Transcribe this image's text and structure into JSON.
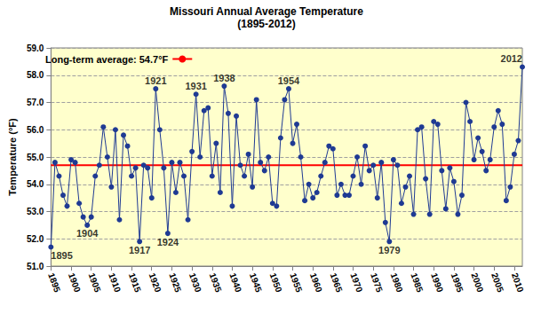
{
  "chart_data": {
    "type": "line",
    "title": "Missouri Annual Average Temperature",
    "subtitle": "(1895-2012)",
    "y_label": "Temperature (°F)",
    "x": [
      1895,
      1896,
      1897,
      1898,
      1899,
      1900,
      1901,
      1902,
      1903,
      1904,
      1905,
      1906,
      1907,
      1908,
      1909,
      1910,
      1911,
      1912,
      1913,
      1914,
      1915,
      1916,
      1917,
      1918,
      1919,
      1920,
      1921,
      1922,
      1923,
      1924,
      1925,
      1926,
      1927,
      1928,
      1929,
      1930,
      1931,
      1932,
      1933,
      1934,
      1935,
      1936,
      1937,
      1938,
      1939,
      1940,
      1941,
      1942,
      1943,
      1944,
      1945,
      1946,
      1947,
      1948,
      1949,
      1950,
      1951,
      1952,
      1953,
      1954,
      1955,
      1956,
      1957,
      1958,
      1959,
      1960,
      1961,
      1962,
      1963,
      1964,
      1965,
      1966,
      1967,
      1968,
      1969,
      1970,
      1971,
      1972,
      1973,
      1974,
      1975,
      1976,
      1977,
      1978,
      1979,
      1980,
      1981,
      1982,
      1983,
      1984,
      1985,
      1986,
      1987,
      1988,
      1989,
      1990,
      1991,
      1992,
      1993,
      1994,
      1995,
      1996,
      1997,
      1998,
      1999,
      2000,
      2001,
      2002,
      2003,
      2004,
      2005,
      2006,
      2007,
      2008,
      2009,
      2010,
      2011,
      2012
    ],
    "values": [
      51.7,
      54.8,
      54.3,
      53.6,
      53.2,
      54.9,
      54.8,
      53.3,
      52.8,
      52.5,
      52.8,
      54.3,
      54.7,
      56.1,
      55.0,
      53.9,
      56.0,
      52.7,
      55.8,
      55.4,
      54.3,
      54.6,
      51.9,
      54.7,
      54.6,
      53.5,
      57.5,
      56.0,
      54.6,
      52.2,
      54.8,
      53.7,
      54.8,
      54.3,
      52.7,
      55.2,
      57.3,
      55.0,
      56.7,
      56.8,
      54.3,
      55.5,
      53.7,
      57.6,
      56.6,
      53.2,
      56.5,
      54.7,
      54.3,
      55.1,
      53.9,
      57.1,
      54.8,
      54.5,
      55.0,
      53.3,
      53.2,
      55.7,
      57.1,
      57.5,
      55.5,
      56.2,
      55.0,
      53.4,
      54.0,
      53.5,
      53.7,
      54.3,
      54.8,
      55.4,
      55.3,
      53.6,
      54.0,
      53.6,
      53.6,
      54.3,
      55.0,
      54.0,
      55.4,
      54.5,
      54.7,
      53.5,
      54.8,
      52.6,
      51.9,
      54.9,
      54.7,
      53.3,
      53.9,
      54.3,
      52.9,
      56.0,
      56.1,
      54.2,
      52.9,
      56.3,
      56.2,
      54.5,
      53.1,
      54.6,
      54.1,
      52.9,
      53.6,
      57.0,
      56.3,
      54.9,
      55.7,
      55.2,
      54.5,
      54.9,
      56.1,
      56.7,
      56.2,
      53.4,
      53.9,
      55.1,
      55.6,
      58.3
    ],
    "color": "#1f3a93",
    "marker": "circle",
    "line_style": "solid",
    "reference_line": {
      "name": "Long-term average: 54.7°F",
      "value": 54.7,
      "color": "#ff0000"
    },
    "annotations": [
      {
        "text": "1895",
        "x": 1895
      },
      {
        "text": "1904",
        "x": 1904
      },
      {
        "text": "1917",
        "x": 1917
      },
      {
        "text": "1921",
        "x": 1921
      },
      {
        "text": "1924",
        "x": 1924
      },
      {
        "text": "1931",
        "x": 1931
      },
      {
        "text": "1938",
        "x": 1938
      },
      {
        "text": "1954",
        "x": 1954
      },
      {
        "text": "1979",
        "x": 1979
      },
      {
        "text": "2012",
        "x": 2012
      }
    ],
    "xlim": [
      1895,
      2012
    ],
    "xticks": [
      1895,
      1900,
      1905,
      1910,
      1915,
      1920,
      1925,
      1930,
      1935,
      1940,
      1945,
      1950,
      1955,
      1960,
      1965,
      1970,
      1975,
      1980,
      1985,
      1990,
      1995,
      2000,
      2005,
      2010
    ],
    "ylim": [
      51,
      59
    ],
    "yticks": [
      {
        "value": 51,
        "label": "51.0"
      },
      {
        "value": 52,
        "label": "52.0"
      },
      {
        "value": 53,
        "label": "53.0"
      },
      {
        "value": 54,
        "label": "54.0"
      },
      {
        "value": 55,
        "label": "55.0"
      },
      {
        "value": 56,
        "label": "56.0"
      },
      {
        "value": 57,
        "label": "57.0"
      },
      {
        "value": 58,
        "label": "58.0"
      },
      {
        "value": 59,
        "label": "59.0"
      }
    ],
    "grid": true,
    "legend": "upper left"
  }
}
